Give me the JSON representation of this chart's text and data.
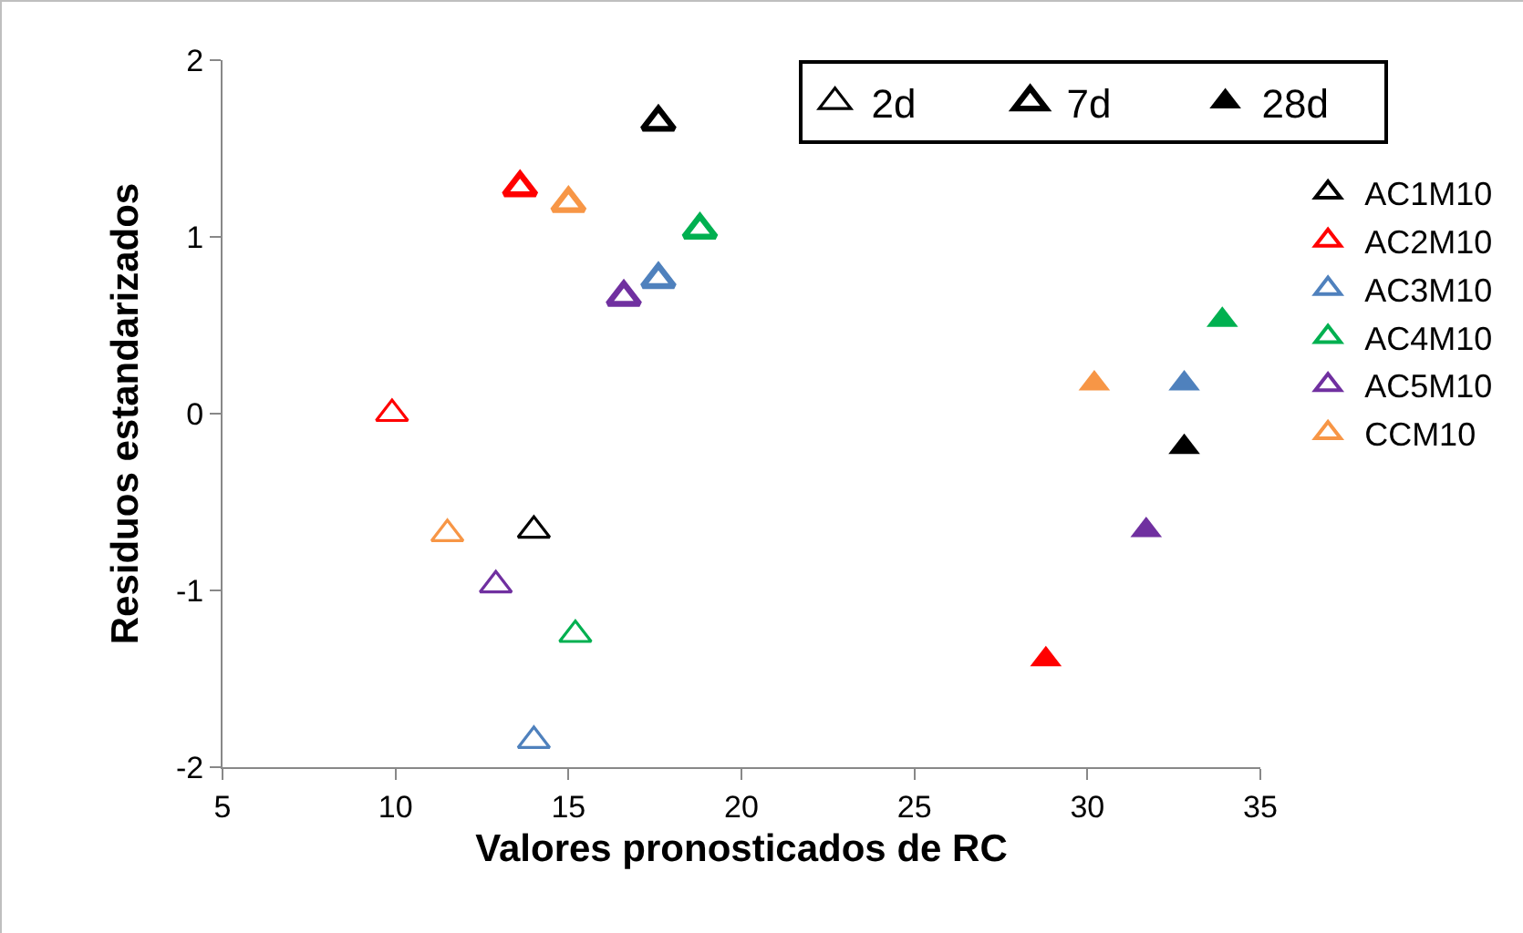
{
  "chart_data": {
    "type": "scatter",
    "xlabel": "Valores pronosticados de RC",
    "ylabel": "Residuos estandarizados",
    "xlim": [
      5,
      35
    ],
    "xticks": [
      5,
      10,
      15,
      20,
      25,
      30,
      35
    ],
    "ylim": [
      -2,
      2
    ],
    "yticks": [
      -2,
      -1,
      0,
      1,
      2
    ],
    "grid": false,
    "legend": "right",
    "marker": "triangle",
    "series": [
      {
        "name": "AC1M10",
        "color": "#000000",
        "x": [
          14.0
        ],
        "values": [
          -0.66
        ],
        "marker": "triangle-open"
      },
      {
        "name": "AC2M10",
        "color": "#ff0000",
        "x": [
          9.9
        ],
        "values": [
          0.0
        ],
        "marker": "triangle-open"
      },
      {
        "name": "AC3M10",
        "color": "#4f81bd",
        "x": [
          14.0
        ],
        "values": [
          -1.85
        ],
        "marker": "triangle-open"
      },
      {
        "name": "AC4M10",
        "color": "#00b050",
        "x": [
          15.2
        ],
        "values": [
          -1.25
        ],
        "marker": "triangle-open"
      },
      {
        "name": "AC5M10",
        "color": "#7030a0",
        "x": [
          12.9
        ],
        "values": [
          -0.97
        ],
        "marker": "triangle-open"
      },
      {
        "name": "CCM10",
        "color": "#f79646",
        "x": [
          11.5
        ],
        "values": [
          -0.68
        ],
        "marker": "triangle-open"
      },
      {
        "color": "#000000",
        "x": [
          17.6
        ],
        "values": [
          1.65
        ],
        "marker": "triangle-thick"
      },
      {
        "color": "#ff0000",
        "x": [
          13.6
        ],
        "values": [
          1.28
        ],
        "marker": "triangle-thick"
      },
      {
        "color": "#4f81bd",
        "x": [
          17.6
        ],
        "values": [
          0.76
        ],
        "marker": "triangle-thick"
      },
      {
        "color": "#00b050",
        "x": [
          18.8
        ],
        "values": [
          1.04
        ],
        "marker": "triangle-thick"
      },
      {
        "color": "#7030a0",
        "x": [
          16.6
        ],
        "values": [
          0.66
        ],
        "marker": "triangle-thick"
      },
      {
        "color": "#f79646",
        "x": [
          15.0
        ],
        "values": [
          1.19
        ],
        "marker": "triangle-thick"
      },
      {
        "color": "#000000",
        "x": [
          32.8
        ],
        "values": [
          -0.19
        ],
        "marker": "triangle"
      },
      {
        "color": "#ff0000",
        "x": [
          28.8
        ],
        "values": [
          -1.39
        ],
        "marker": "triangle"
      },
      {
        "color": "#4f81bd",
        "x": [
          32.8
        ],
        "values": [
          0.17
        ],
        "marker": "triangle"
      },
      {
        "color": "#00b050",
        "x": [
          33.9
        ],
        "values": [
          0.53
        ],
        "marker": "triangle"
      },
      {
        "color": "#7030a0",
        "x": [
          31.7
        ],
        "values": [
          -0.66
        ],
        "marker": "triangle"
      },
      {
        "color": "#f79646",
        "x": [
          30.2
        ],
        "values": [
          0.17
        ],
        "marker": "triangle"
      },
      {
        "name": "2d",
        "color": "#000000",
        "marker": "triangle-open"
      },
      {
        "name": "7d",
        "color": "#000000",
        "marker": "triangle-thick"
      },
      {
        "name": "28d",
        "color": "#000000",
        "marker": "triangle"
      }
    ]
  }
}
